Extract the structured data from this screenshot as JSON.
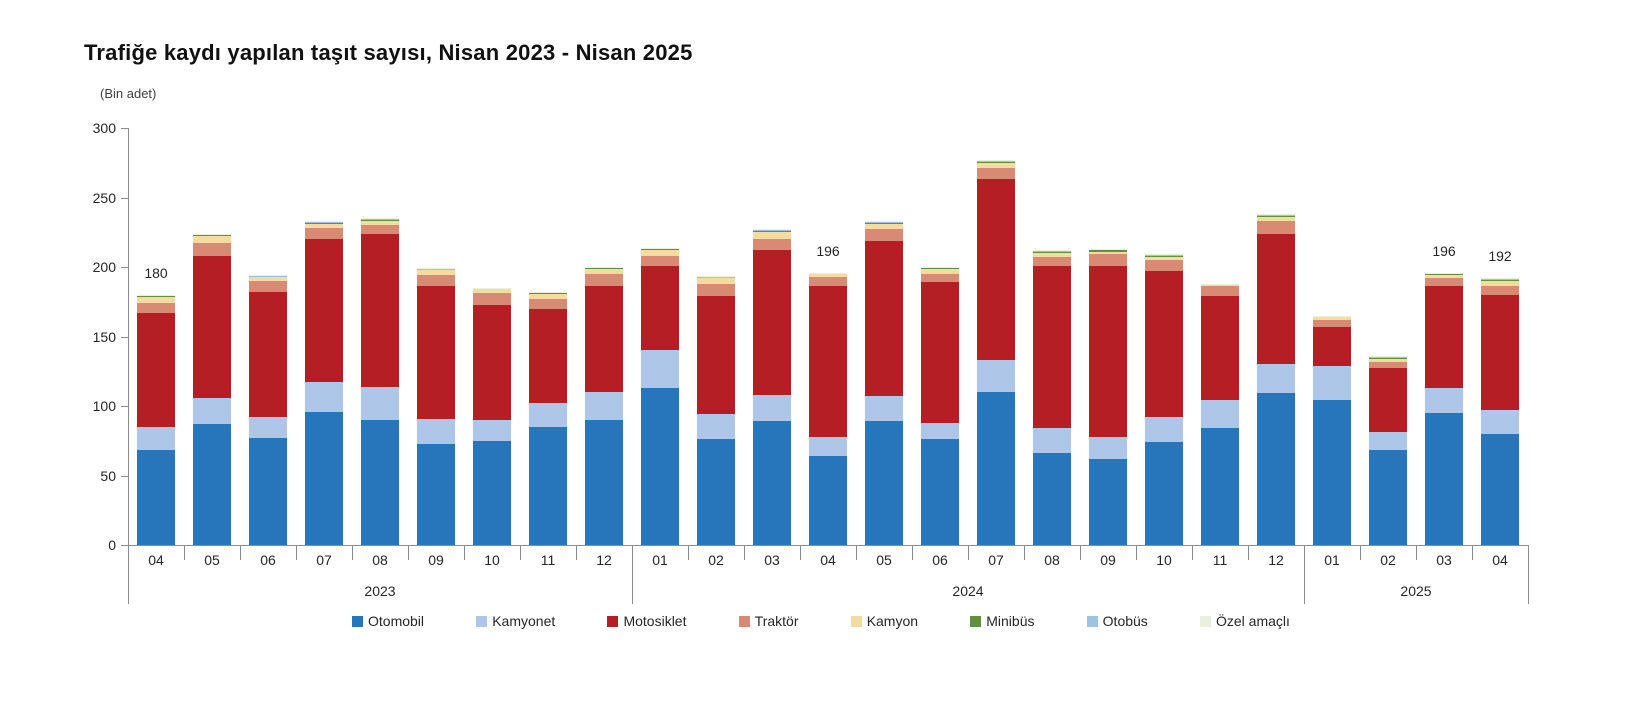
{
  "title": "Trafiğe kaydı yapılan taşıt sayısı, Nisan 2023 - Nisan 2025",
  "unit_label": "(Bin adet)",
  "chart_data": {
    "type": "bar",
    "stacked": true,
    "title": "Trafiğe kaydı yapılan taşıt sayısı, Nisan 2023 - Nisan 2025",
    "ylabel": "(Bin adet)",
    "ylim": [
      0,
      300
    ],
    "yticks": [
      0,
      50,
      100,
      150,
      200,
      250,
      300
    ],
    "grid": false,
    "legend_position": "bottom",
    "categories": [
      "04",
      "05",
      "06",
      "07",
      "08",
      "09",
      "10",
      "11",
      "12",
      "01",
      "02",
      "03",
      "04",
      "05",
      "06",
      "07",
      "08",
      "09",
      "10",
      "11",
      "12",
      "01",
      "02",
      "03",
      "04"
    ],
    "year_groups": [
      {
        "label": "2023",
        "start": 0,
        "count": 9
      },
      {
        "label": "2024",
        "start": 9,
        "count": 12
      },
      {
        "label": "2025",
        "start": 21,
        "count": 4
      }
    ],
    "series": [
      {
        "name": "Otomobil",
        "color": "#2776bc",
        "values": [
          68,
          87,
          77,
          96,
          90,
          73,
          75,
          85,
          90,
          113,
          76,
          89,
          64,
          89,
          76,
          110,
          66,
          62,
          74,
          84,
          109,
          104,
          68,
          95,
          80
        ]
      },
      {
        "name": "Kamyonet",
        "color": "#aec6e8",
        "values": [
          17,
          19,
          15,
          21,
          24,
          18,
          15,
          17,
          20,
          27,
          18,
          19,
          14,
          18,
          12,
          23,
          18,
          16,
          18,
          20,
          21,
          25,
          13,
          18,
          17
        ]
      },
      {
        "name": "Motosiklet",
        "color": "#b51e24",
        "values": [
          82,
          102,
          90,
          103,
          110,
          95,
          83,
          68,
          76,
          61,
          85,
          104,
          108,
          112,
          101,
          130,
          117,
          123,
          105,
          75,
          94,
          28,
          46,
          73,
          83
        ]
      },
      {
        "name": "Traktör",
        "color": "#d98a75",
        "values": [
          7,
          9,
          8,
          8,
          6,
          8,
          8,
          7,
          9,
          7,
          9,
          8,
          7,
          8,
          6,
          8,
          6,
          8,
          8,
          7,
          9,
          5,
          5,
          6,
          6
        ]
      },
      {
        "name": "Kamyon",
        "color": "#f3dc9f",
        "values": [
          4.5,
          5,
          3,
          3,
          3,
          4,
          3,
          4,
          4,
          4,
          4,
          5,
          2.5,
          4,
          4,
          4,
          3,
          2,
          2,
          1,
          3,
          2,
          2,
          2,
          4
        ]
      },
      {
        "name": "Minibüs",
        "color": "#5f9141",
        "values": [
          0.6,
          1,
          0.5,
          1,
          1,
          0.6,
          0.6,
          0.6,
          0.6,
          1.2,
          0.6,
          1.2,
          0.3,
          1.2,
          0.6,
          1.2,
          1.2,
          1.2,
          1.2,
          0.8,
          1.2,
          0.6,
          1.2,
          1.2,
          1.2
        ]
      },
      {
        "name": "Otobüs",
        "color": "#9cc3e5",
        "values": [
          0.4,
          0.5,
          0.2,
          0.5,
          0.5,
          0.2,
          0.2,
          0.2,
          0.2,
          0.4,
          0.2,
          0.4,
          0.1,
          0.4,
          0.2,
          0.4,
          0.4,
          0.4,
          0.4,
          0.1,
          0.4,
          0.2,
          0.4,
          0.4,
          0.4
        ]
      },
      {
        "name": "Özel amaçlı",
        "color": "#e9f0db",
        "values": [
          0.5,
          0.5,
          0.3,
          0.5,
          0.5,
          0.2,
          0.2,
          0.2,
          0.2,
          0.4,
          0.4,
          0.4,
          0.1,
          0.4,
          0.2,
          0.4,
          0.4,
          0.4,
          0.4,
          0.1,
          0.4,
          0.2,
          0.4,
          0.4,
          0.4
        ]
      }
    ],
    "annotations": [
      {
        "index": 0,
        "text": "180"
      },
      {
        "index": 12,
        "text": "196"
      },
      {
        "index": 23,
        "text": "196"
      },
      {
        "index": 24,
        "text": "192"
      }
    ]
  }
}
